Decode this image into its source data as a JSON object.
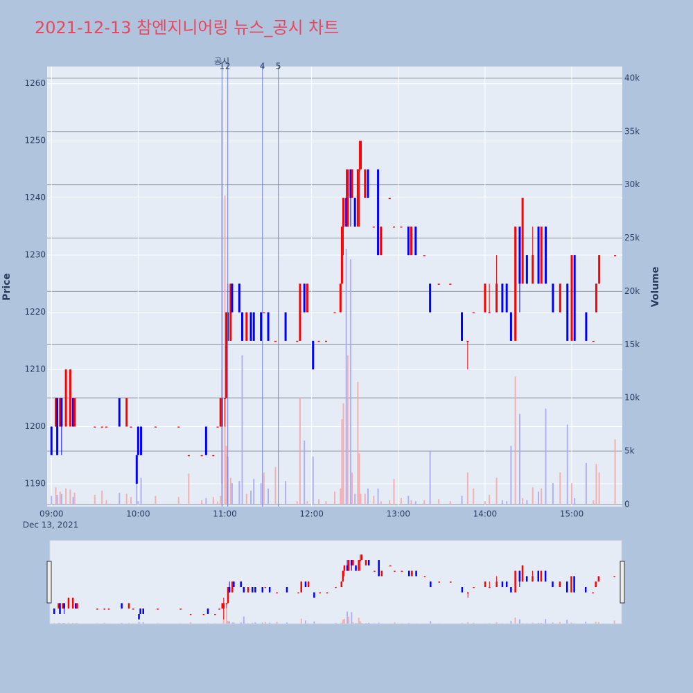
{
  "chart_data": {
    "type": "candlestick",
    "title": "2021-12-13 참엔지니어링 뉴스_공시 차트",
    "y_label": "Price",
    "y2_label": "Volume",
    "date_label": "Dec 13, 2021",
    "increasing_color": "#ff0000",
    "decreasing_color": "#0000ff",
    "volume_increasing_color": "#f4a6a6",
    "volume_decreasing_color": "#a6a6f4",
    "news_title": "공시",
    "news": [
      {
        "x": "10:58",
        "label": "1"
      },
      {
        "x": "11:02",
        "label": "2"
      },
      {
        "x": "11:26",
        "label": "4"
      },
      {
        "x": "11:37",
        "label": "5"
      }
    ],
    "xlim": [
      "08:57",
      "15:35"
    ],
    "xticks": [
      "09:00",
      "10:00",
      "11:00",
      "12:00",
      "13:00",
      "14:00",
      "15:00"
    ],
    "ylim": [
      1186,
      1263
    ],
    "yticks": [
      1190,
      1200,
      1210,
      1220,
      1230,
      1240,
      1250,
      1260
    ],
    "y2lim": [
      -200,
      41100
    ],
    "y2ticks": [
      0,
      {
        "value": 5000,
        "label": "5k"
      },
      {
        "value": 10000,
        "label": "10k"
      },
      {
        "value": 15000,
        "label": "15k"
      },
      {
        "value": 20000,
        "label": "20k"
      },
      {
        "value": 25000,
        "label": "25k"
      },
      {
        "value": 30000,
        "label": "30k"
      },
      {
        "value": 35000,
        "label": "35k"
      },
      {
        "value": 40000,
        "label": "40k"
      }
    ],
    "x": [
      "09:00",
      "09:03",
      "09:04",
      "09:06",
      "09:07",
      "09:10",
      "09:13",
      "09:15",
      "09:16",
      "09:30",
      "09:35",
      "09:38",
      "09:47",
      "09:52",
      "09:55",
      "09:59",
      "10:00",
      "10:02",
      "10:12",
      "10:28",
      "10:35",
      "10:44",
      "10:47",
      "10:52",
      "10:55",
      "10:57",
      "10:58",
      "11:00",
      "11:01",
      "11:02",
      "11:04",
      "11:05",
      "11:10",
      "11:12",
      "11:15",
      "11:18",
      "11:20",
      "11:25",
      "11:27",
      "11:30",
      "11:35",
      "11:42",
      "11:50",
      "11:52",
      "11:55",
      "11:57",
      "12:01",
      "12:05",
      "12:10",
      "12:16",
      "12:20",
      "12:21",
      "12:22",
      "12:24",
      "12:25",
      "12:27",
      "12:28",
      "12:30",
      "12:32",
      "12:33",
      "12:34",
      "12:37",
      "12:39",
      "12:43",
      "12:46",
      "12:48",
      "12:54",
      "12:57",
      "13:02",
      "13:07",
      "13:09",
      "13:12",
      "13:18",
      "13:22",
      "13:28",
      "13:36",
      "13:44",
      "13:48",
      "13:52",
      "14:00",
      "14:03",
      "14:08",
      "14:12",
      "14:15",
      "14:18",
      "14:21",
      "14:24",
      "14:26",
      "14:29",
      "14:33",
      "14:37",
      "14:39",
      "14:42",
      "14:47",
      "14:52",
      "14:57",
      "15:00",
      "15:02",
      "15:10",
      "15:15",
      "15:17",
      "15:19",
      "15:30"
    ],
    "open": [
      1200,
      1200,
      1205,
      1200,
      1205,
      1200,
      1200,
      1205,
      1200,
      1200,
      1200,
      1200,
      1205,
      1200,
      1200,
      1195,
      1200,
      1200,
      1200,
      1200,
      1195,
      1195,
      1200,
      1195,
      1200,
      1200,
      1200,
      1205,
      1205,
      1220,
      1215,
      1225,
      1225,
      1220,
      1215,
      1220,
      1220,
      1220,
      1220,
      1220,
      1215,
      1220,
      1215,
      1215,
      1225,
      1220,
      1215,
      1215,
      1215,
      1220,
      1220,
      1225,
      1235,
      1240,
      1235,
      1245,
      1240,
      1240,
      1235,
      1245,
      1245,
      1240,
      1245,
      1235,
      1245,
      1230,
      1240,
      1235,
      1235,
      1235,
      1230,
      1235,
      1230,
      1225,
      1225,
      1225,
      1220,
      1215,
      1220,
      1220,
      1220,
      1220,
      1225,
      1225,
      1220,
      1215,
      1235,
      1225,
      1230,
      1225,
      1235,
      1225,
      1235,
      1225,
      1220,
      1225,
      1215,
      1230,
      1220,
      1215,
      1220,
      1225,
      1230
    ],
    "high": [
      1200,
      1205,
      1205,
      1205,
      1205,
      1210,
      1210,
      1205,
      1205,
      1200,
      1200,
      1200,
      1205,
      1205,
      1200,
      1195,
      1200,
      1200,
      1200,
      1200,
      1195,
      1195,
      1200,
      1195,
      1200,
      1205,
      1210,
      1205,
      1220,
      1225,
      1225,
      1225,
      1225,
      1220,
      1220,
      1220,
      1220,
      1220,
      1220,
      1220,
      1215,
      1220,
      1215,
      1225,
      1225,
      1225,
      1215,
      1215,
      1215,
      1220,
      1225,
      1235,
      1240,
      1245,
      1245,
      1245,
      1245,
      1240,
      1245,
      1250,
      1250,
      1245,
      1245,
      1235,
      1245,
      1235,
      1240,
      1235,
      1235,
      1235,
      1235,
      1235,
      1230,
      1225,
      1225,
      1225,
      1220,
      1215,
      1220,
      1225,
      1225,
      1230,
      1225,
      1225,
      1220,
      1235,
      1235,
      1240,
      1230,
      1235,
      1235,
      1235,
      1235,
      1225,
      1225,
      1225,
      1230,
      1230,
      1220,
      1215,
      1225,
      1230,
      1230
    ],
    "low": [
      1195,
      1200,
      1195,
      1200,
      1195,
      1200,
      1200,
      1200,
      1200,
      1200,
      1200,
      1200,
      1200,
      1200,
      1200,
      1190,
      1195,
      1195,
      1200,
      1200,
      1195,
      1195,
      1195,
      1195,
      1200,
      1200,
      1190,
      1200,
      1205,
      1215,
      1215,
      1220,
      1220,
      1215,
      1215,
      1215,
      1215,
      1215,
      1220,
      1215,
      1215,
      1215,
      1215,
      1215,
      1220,
      1220,
      1210,
      1215,
      1215,
      1220,
      1220,
      1225,
      1230,
      1235,
      1235,
      1235,
      1240,
      1235,
      1235,
      1235,
      1245,
      1240,
      1240,
      1235,
      1230,
      1230,
      1240,
      1235,
      1235,
      1230,
      1230,
      1230,
      1230,
      1220,
      1225,
      1225,
      1215,
      1210,
      1220,
      1220,
      1220,
      1220,
      1220,
      1220,
      1215,
      1215,
      1220,
      1225,
      1225,
      1225,
      1225,
      1225,
      1225,
      1220,
      1220,
      1215,
      1215,
      1215,
      1215,
      1215,
      1220,
      1225,
      1230
    ],
    "close": [
      1195,
      1205,
      1195,
      1205,
      1200,
      1210,
      1210,
      1200,
      1205,
      1200,
      1200,
      1200,
      1200,
      1205,
      1200,
      1190,
      1195,
      1195,
      1200,
      1200,
      1195,
      1195,
      1195,
      1195,
      1200,
      1205,
      1205,
      1205,
      1220,
      1215,
      1225,
      1220,
      1220,
      1215,
      1220,
      1215,
      1215,
      1215,
      1220,
      1215,
      1215,
      1215,
      1215,
      1225,
      1220,
      1225,
      1210,
      1215,
      1215,
      1220,
      1225,
      1235,
      1240,
      1235,
      1245,
      1240,
      1245,
      1235,
      1245,
      1245,
      1250,
      1245,
      1240,
      1235,
      1230,
      1235,
      1240,
      1235,
      1235,
      1230,
      1235,
      1230,
      1230,
      1220,
      1225,
      1225,
      1215,
      1215,
      1220,
      1225,
      1220,
      1225,
      1220,
      1220,
      1215,
      1235,
      1225,
      1240,
      1225,
      1230,
      1225,
      1235,
      1225,
      1220,
      1225,
      1215,
      1230,
      1215,
      1215,
      1215,
      1225,
      1230,
      1230
    ],
    "volume": [
      800,
      1600,
      900,
      1200,
      1000,
      1500,
      1400,
      700,
      1100,
      900,
      1300,
      400,
      1100,
      1000,
      700,
      3500,
      300,
      2500,
      800,
      700,
      2900,
      400,
      600,
      700,
      300,
      800,
      38000,
      29000,
      5500,
      4500,
      2500,
      2000,
      2200,
      14000,
      1000,
      1300,
      2400,
      2000,
      3000,
      1500,
      3500,
      2200,
      300,
      10000,
      6000,
      300,
      4500,
      500,
      300,
      1200,
      1500,
      8000,
      9500,
      24000,
      14000,
      23000,
      3000,
      1000,
      11500,
      4800,
      1000,
      1000,
      1500,
      800,
      1500,
      300,
      400,
      2400,
      600,
      800,
      400,
      300,
      400,
      5000,
      500,
      300,
      800,
      3000,
      1500,
      300,
      900,
      2500,
      400,
      300,
      5500,
      12000,
      8500,
      600,
      400,
      1600,
      1200,
      1500,
      9000,
      2000,
      3000,
      7500,
      2000,
      600,
      3900,
      400,
      3800,
      3000,
      6100
    ]
  }
}
